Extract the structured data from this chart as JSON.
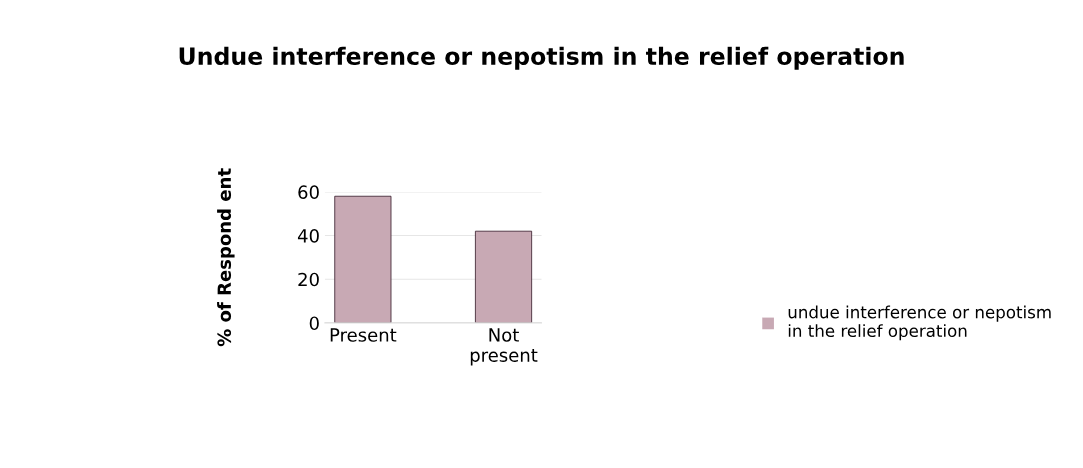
{
  "chart_data": {
    "type": "bar",
    "title": "Undue interference or nepotism in the relief operation",
    "ylabel": "% of Respond ent",
    "categories": [
      "Present",
      "Not present"
    ],
    "series": [
      {
        "name": "undue interference or nepotism in the relief operation",
        "color": "#c8a9b4",
        "values": [
          58,
          42
        ]
      }
    ],
    "ylim": [
      0,
      60
    ],
    "yticks": [
      0,
      20,
      40,
      60
    ],
    "grid": "y",
    "legend": "right"
  }
}
